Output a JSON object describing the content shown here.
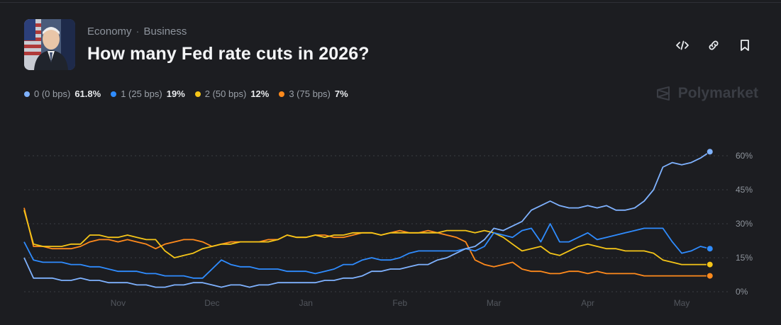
{
  "header": {
    "breadcrumbs": [
      "Economy",
      "Business"
    ],
    "separator": "·",
    "title": "How many Fed rate cuts in 2026?",
    "avatar_icon": "fed-chair-portrait"
  },
  "actions": {
    "embed_icon": "code-icon",
    "link_icon": "link-icon",
    "bookmark_icon": "bookmark-icon"
  },
  "brand": {
    "name": "Polymarket",
    "icon": "polymarket-logo-icon"
  },
  "legend": [
    {
      "name": "0 (0 bps)",
      "value": "61.8%",
      "color": "#7fb2ff"
    },
    {
      "name": "1 (25 bps)",
      "value": "19%",
      "color": "#2f8cff"
    },
    {
      "name": "2 (50 bps)",
      "value": "12%",
      "color": "#f5c518"
    },
    {
      "name": "3 (75 bps)",
      "value": "7%",
      "color": "#ff8a1c"
    }
  ],
  "chart_data": {
    "type": "line",
    "x_ticks": [
      "Nov",
      "Dec",
      "Jan",
      "Feb",
      "Mar",
      "Apr",
      "May"
    ],
    "x_tick_index": [
      10,
      20,
      30,
      40,
      50,
      60,
      70
    ],
    "x_range": [
      0,
      74
    ],
    "y_ticks": [
      "0%",
      "15%",
      "30%",
      "45%",
      "60%"
    ],
    "y_tick_values": [
      0,
      15,
      30,
      45,
      60
    ],
    "ylim": [
      0,
      60
    ],
    "grid": true,
    "legend_position": "top-left",
    "series": [
      {
        "name": "0 (0 bps)",
        "color": "#7fb2ff",
        "values": [
          15,
          6,
          6,
          6,
          5,
          5,
          6,
          5,
          5,
          4,
          4,
          4,
          3,
          3,
          2,
          2,
          3,
          3,
          4,
          4,
          3,
          2,
          3,
          3,
          2,
          3,
          3,
          4,
          4,
          4,
          4,
          4,
          5,
          5,
          6,
          6,
          7,
          9,
          9,
          10,
          10,
          11,
          12,
          12,
          14,
          15,
          17,
          19,
          20,
          23,
          28,
          27,
          29,
          31,
          36,
          38,
          40,
          38,
          37,
          37,
          38,
          37,
          38,
          36,
          36,
          37,
          40,
          45,
          55,
          57,
          56,
          57,
          59,
          61.8
        ]
      },
      {
        "name": "1 (25 bps)",
        "color": "#2f8cff",
        "values": [
          22,
          14,
          13,
          13,
          13,
          12,
          12,
          11,
          11,
          10,
          9,
          9,
          9,
          8,
          8,
          7,
          7,
          7,
          6,
          6,
          10,
          14,
          12,
          11,
          11,
          10,
          10,
          10,
          9,
          9,
          9,
          8,
          9,
          10,
          12,
          12,
          14,
          15,
          14,
          14,
          15,
          17,
          18,
          18,
          18,
          18,
          18,
          19,
          18,
          20,
          26,
          25,
          24,
          27,
          28,
          22,
          30,
          22,
          22,
          24,
          26,
          23,
          24,
          25,
          26,
          27,
          28,
          28,
          28,
          22,
          17,
          18,
          20,
          19
        ]
      },
      {
        "name": "2 (50 bps)",
        "color": "#f5c518",
        "values": [
          36,
          21,
          20,
          20,
          20,
          21,
          21,
          25,
          25,
          24,
          24,
          25,
          24,
          23,
          23,
          18,
          15,
          16,
          17,
          19,
          20,
          21,
          21,
          22,
          22,
          22,
          22,
          23,
          25,
          24,
          24,
          25,
          24,
          25,
          25,
          26,
          26,
          26,
          25,
          26,
          26,
          26,
          26,
          26,
          26,
          27,
          27,
          27,
          26,
          27,
          26,
          24,
          21,
          18,
          19,
          20,
          17,
          16,
          18,
          20,
          21,
          20,
          19,
          19,
          18,
          18,
          18,
          17,
          14,
          13,
          12,
          12,
          12,
          12
        ]
      },
      {
        "name": "3 (75 bps)",
        "color": "#ff8a1c",
        "values": [
          37,
          20,
          20,
          19,
          19,
          19,
          20,
          22,
          23,
          23,
          22,
          23,
          22,
          21,
          19,
          21,
          22,
          23,
          23,
          22,
          20,
          21,
          22,
          22,
          22,
          22,
          23,
          23,
          25,
          24,
          24,
          25,
          25,
          24,
          24,
          25,
          26,
          26,
          25,
          26,
          27,
          26,
          26,
          27,
          26,
          25,
          24,
          22,
          14,
          12,
          11,
          12,
          13,
          10,
          9,
          9,
          8,
          8,
          9,
          9,
          8,
          9,
          8,
          8,
          8,
          8,
          7,
          7,
          7,
          7,
          7,
          7,
          7,
          7
        ]
      }
    ]
  }
}
